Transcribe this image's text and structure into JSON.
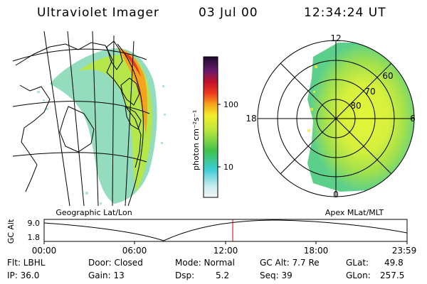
{
  "header": {
    "title": "Ultraviolet Imager",
    "date": "03 Jul 00",
    "time": "12:34:24 UT"
  },
  "colorbar": {
    "label": "photon cm⁻²s⁻¹",
    "tick_labels": [
      "100",
      "10"
    ],
    "scale": "log"
  },
  "left_panel": {
    "caption": "Geographic Lat/Lon"
  },
  "right_panel": {
    "caption": "Apex MLat/MLT",
    "mlt_labels": [
      "12",
      "18",
      "6",
      "0"
    ],
    "lat_labels": [
      "60",
      "70",
      "80"
    ]
  },
  "timeline": {
    "ylabel": "GC Alt",
    "y_ticks": [
      "9.0",
      "1.8"
    ],
    "x_ticks": [
      "00:00",
      "06:00",
      "12:00",
      "18:00",
      "23:59"
    ],
    "current_time": "12:34",
    "marker_color": "#cc0000"
  },
  "info": {
    "row1": {
      "filter": "Flt: LBHL",
      "door": "Door: Closed",
      "mode": "Mode: Normal",
      "gc_alt": "GC Alt: 7.7 Re",
      "glat_label": "GLat:",
      "glat_value": "49.8"
    },
    "row2": {
      "ip": "IP: 36.0",
      "gain": "Gain: 13",
      "dsp_label": "Dsp:",
      "dsp_value": "5.2",
      "seq": "Seq: 39",
      "glon_label": "GLon:",
      "glon_value": "257.5"
    }
  }
}
